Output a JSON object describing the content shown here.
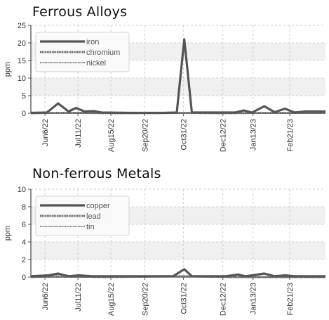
{
  "chart_data": [
    {
      "type": "line",
      "title": "Ferrous Alloys",
      "xlabel": "",
      "ylabel": "ppm",
      "ylim": [
        0,
        25
      ],
      "yticks": [
        0,
        5,
        10,
        15,
        20,
        25
      ],
      "xticks": [
        "Jun6/22",
        "Jul11/22",
        "Aug15/22",
        "Sep20/22",
        "Oct31/22",
        "Dec12/22",
        "Jan13/23",
        "Feb21/23"
      ],
      "xlim": [
        "2022-05-22",
        "2023-03-31"
      ],
      "grid": true,
      "legend_position": "top-left",
      "series": [
        {
          "name": "iron",
          "color": "#555555",
          "points": [
            [
              "2022-05-22",
              0.1
            ],
            [
              "2022-06-08",
              0.2
            ],
            [
              "2022-06-20",
              2.8
            ],
            [
              "2022-07-01",
              0.5
            ],
            [
              "2022-07-09",
              1.5
            ],
            [
              "2022-07-18",
              0.5
            ],
            [
              "2022-07-28",
              0.6
            ],
            [
              "2022-08-05",
              0.2
            ],
            [
              "2022-09-05",
              0.1
            ],
            [
              "2022-10-10",
              0.1
            ],
            [
              "2022-10-24",
              0.2
            ],
            [
              "2022-11-01",
              21.0
            ],
            [
              "2022-11-09",
              0.2
            ],
            [
              "2022-12-02",
              0.2
            ],
            [
              "2022-12-25",
              0.2
            ],
            [
              "2023-01-03",
              0.8
            ],
            [
              "2023-01-12",
              0.2
            ],
            [
              "2023-01-25",
              2.0
            ],
            [
              "2023-02-05",
              0.3
            ],
            [
              "2023-02-16",
              1.3
            ],
            [
              "2023-02-26",
              0.2
            ],
            [
              "2023-03-10",
              0.5
            ],
            [
              "2023-03-31",
              0.5
            ]
          ]
        },
        {
          "name": "chromium",
          "color": "#666666",
          "points": [
            [
              "2022-05-22",
              0.0
            ],
            [
              "2022-06-20",
              0.1
            ],
            [
              "2022-07-10",
              0.1
            ],
            [
              "2022-08-20",
              0.0
            ],
            [
              "2022-11-01",
              0.1
            ],
            [
              "2022-12-10",
              0.0
            ],
            [
              "2023-01-25",
              0.1
            ],
            [
              "2023-03-31",
              0.1
            ]
          ]
        },
        {
          "name": "nickel",
          "color": "#777777",
          "points": [
            [
              "2022-05-22",
              0.0
            ],
            [
              "2022-07-10",
              0.1
            ],
            [
              "2022-09-15",
              0.0
            ],
            [
              "2022-11-01",
              0.1
            ],
            [
              "2023-01-10",
              0.0
            ],
            [
              "2023-03-31",
              0.0
            ]
          ]
        }
      ]
    },
    {
      "type": "line",
      "title": "Non-ferrous Metals",
      "xlabel": "",
      "ylabel": "ppm",
      "ylim": [
        0,
        10
      ],
      "yticks": [
        0,
        2,
        4,
        6,
        8,
        10
      ],
      "xticks": [
        "Jun6/22",
        "Jul11/22",
        "Aug15/22",
        "Sep20/22",
        "Oct31/22",
        "Dec12/22",
        "Jan13/23",
        "Feb21/23"
      ],
      "xlim": [
        "2022-05-22",
        "2023-03-31"
      ],
      "grid": true,
      "legend_position": "top-left",
      "series": [
        {
          "name": "copper",
          "color": "#555555",
          "points": [
            [
              "2022-05-22",
              0.1
            ],
            [
              "2022-06-10",
              0.2
            ],
            [
              "2022-06-20",
              0.4
            ],
            [
              "2022-07-01",
              0.1
            ],
            [
              "2022-07-12",
              0.2
            ],
            [
              "2022-07-25",
              0.1
            ],
            [
              "2022-09-05",
              0.1
            ],
            [
              "2022-10-20",
              0.1
            ],
            [
              "2022-11-01",
              0.9
            ],
            [
              "2022-11-09",
              0.1
            ],
            [
              "2022-12-15",
              0.1
            ],
            [
              "2022-12-28",
              0.3
            ],
            [
              "2023-01-05",
              0.1
            ],
            [
              "2023-01-25",
              0.4
            ],
            [
              "2023-02-05",
              0.1
            ],
            [
              "2023-02-16",
              0.2
            ],
            [
              "2023-02-26",
              0.1
            ],
            [
              "2023-03-31",
              0.1
            ]
          ]
        },
        {
          "name": "lead",
          "color": "#666666",
          "points": [
            [
              "2022-05-22",
              0.0
            ],
            [
              "2022-06-20",
              0.1
            ],
            [
              "2022-08-10",
              0.0
            ],
            [
              "2022-11-01",
              0.1
            ],
            [
              "2022-12-20",
              0.0
            ],
            [
              "2023-03-31",
              0.0
            ]
          ]
        },
        {
          "name": "tin",
          "color": "#777777",
          "points": [
            [
              "2022-05-22",
              0.0
            ],
            [
              "2022-07-15",
              0.0
            ],
            [
              "2022-11-01",
              0.1
            ],
            [
              "2023-02-01",
              0.0
            ],
            [
              "2023-03-31",
              0.0
            ]
          ]
        }
      ]
    }
  ]
}
